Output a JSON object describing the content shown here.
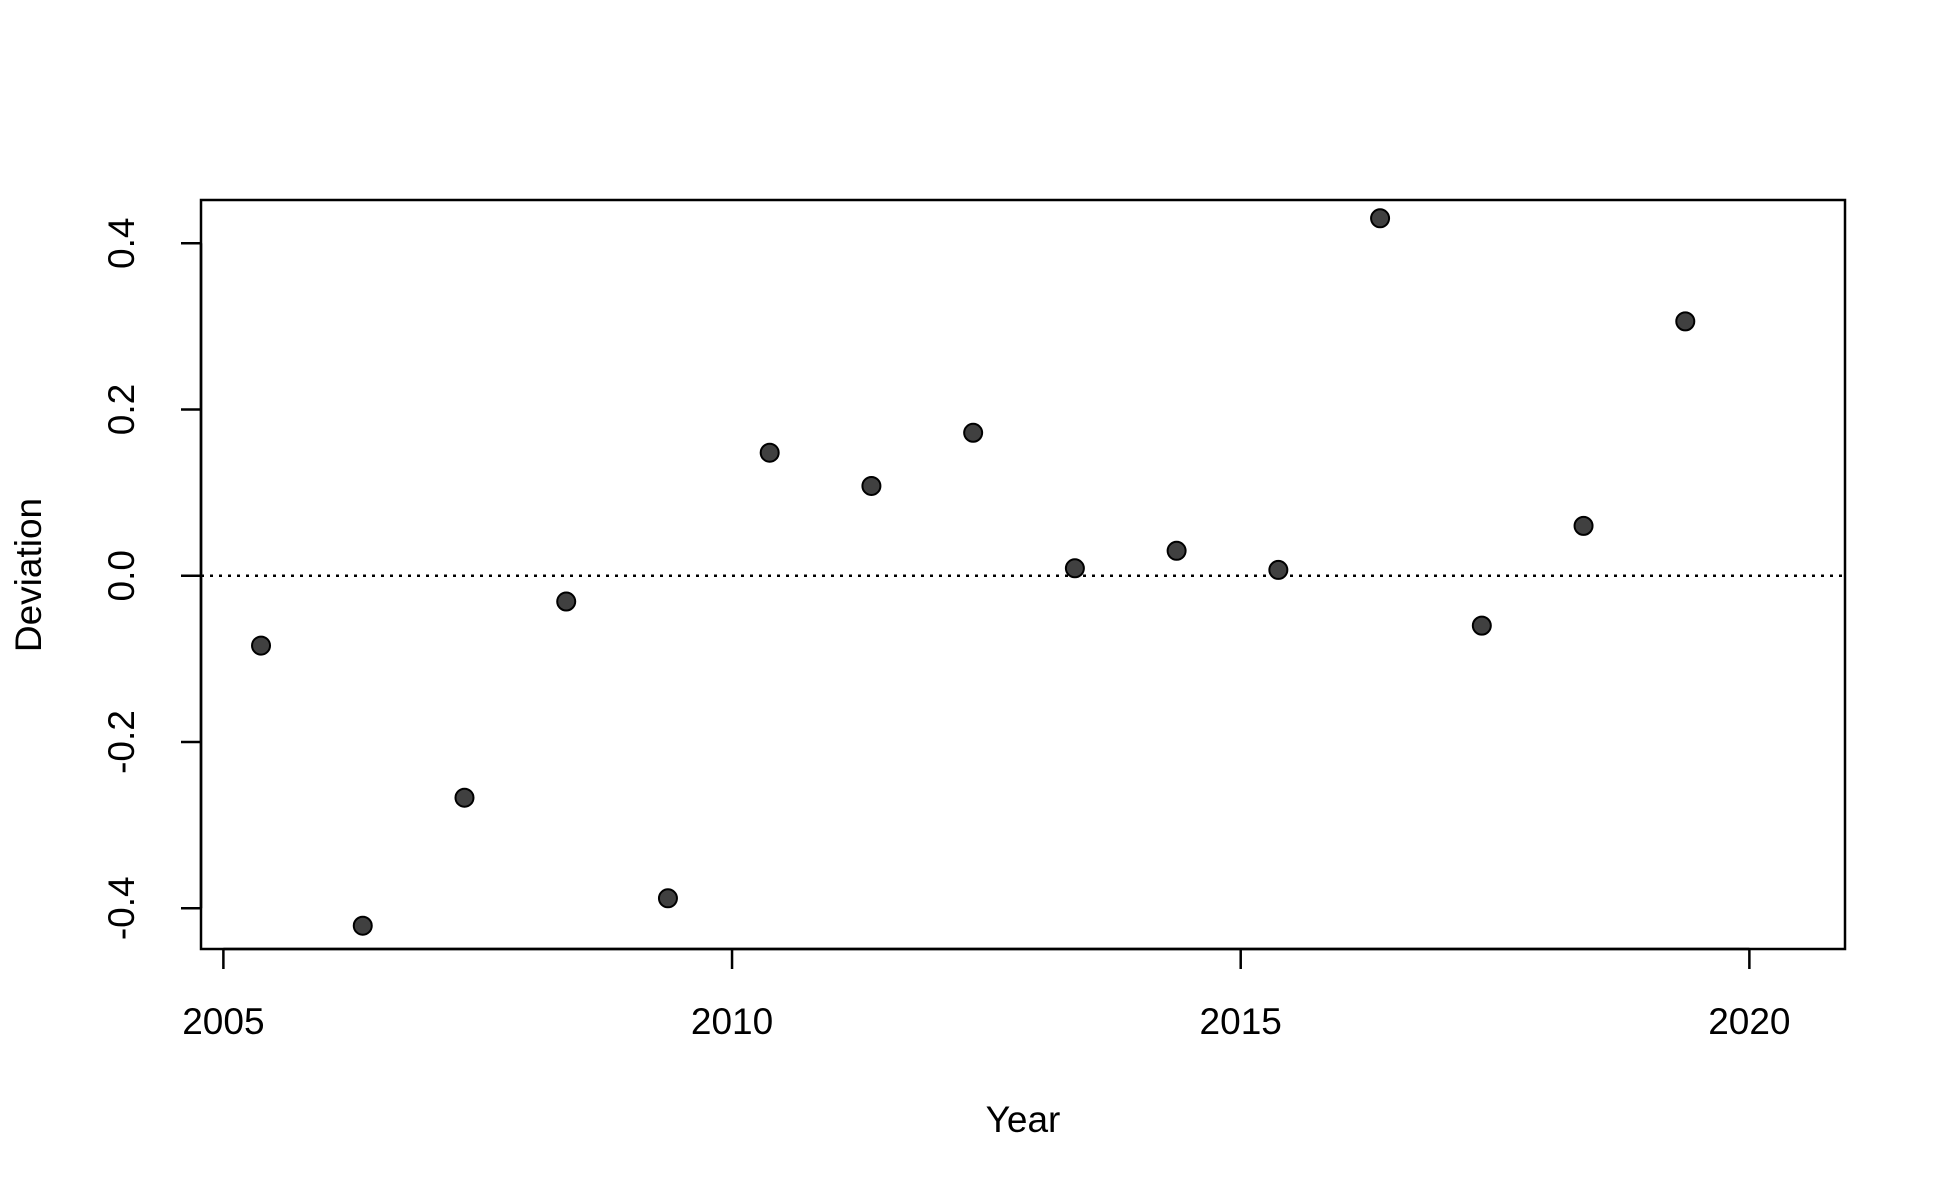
{
  "chart_data": {
    "type": "scatter",
    "x_label": "Year",
    "y_label": "Deviation",
    "x": [
      2005.37,
      2006.37,
      2007.37,
      2008.37,
      2009.37,
      2010.37,
      2011.37,
      2012.37,
      2013.37,
      2014.37,
      2015.37,
      2016.37,
      2017.37,
      2018.37,
      2019.37
    ],
    "values": [
      -0.084,
      -0.421,
      -0.267,
      -0.031,
      -0.388,
      0.148,
      0.108,
      0.172,
      0.009,
      0.03,
      0.007,
      0.43,
      -0.06,
      0.06,
      0.306
    ],
    "color": "#404040",
    "xlim": [
      2004.78,
      2020.94
    ],
    "ylim": [
      -0.449,
      0.452
    ],
    "xticks": [
      2005,
      2010,
      2015,
      2020
    ],
    "yticks": [
      -0.4,
      -0.2,
      {
        "value": 0,
        "label": "0.0"
      },
      0.2,
      0.4
    ],
    "reference_line": 0
  }
}
